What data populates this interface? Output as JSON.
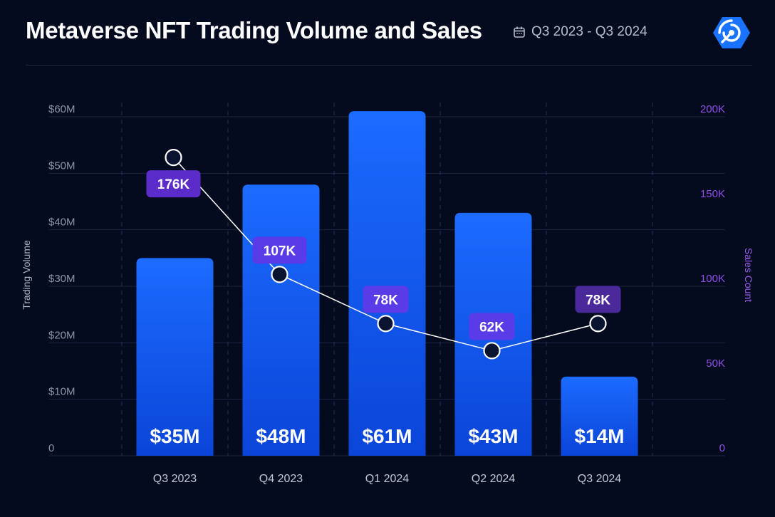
{
  "header": {
    "title": "Metaverse NFT Trading Volume and Sales",
    "date_range": "Q3 2023 - Q3 2024"
  },
  "colors": {
    "background": "#050b1f",
    "bar_top": "#1c6bff",
    "bar_bottom": "#0a45d8",
    "pill_purple": "#5b2cc9",
    "pill_indigo": "#5a3be8",
    "pill_violet": "#4a2a9a",
    "right_axis": "#8f4fe6",
    "logo": "#1a73ff"
  },
  "chart_data": {
    "type": "bar",
    "title": "Metaverse NFT Trading Volume and Sales",
    "categories": [
      "Q3 2023",
      "Q4 2023",
      "Q1 2024",
      "Q2 2024",
      "Q3 2024"
    ],
    "series": [
      {
        "name": "Trading Volume",
        "type": "bar",
        "axis": "left",
        "values": [
          35,
          48,
          61,
          43,
          14
        ],
        "labels": [
          "$35M",
          "$48M",
          "$61M",
          "$43M",
          "$14M"
        ]
      },
      {
        "name": "Sales Count",
        "type": "line",
        "axis": "right",
        "values": [
          176,
          107,
          78,
          62,
          78
        ],
        "labels": [
          "176K",
          "107K",
          "78K",
          "62K",
          "78K"
        ]
      }
    ],
    "ylabel": "Trading Volume",
    "y2label": "Sales Count",
    "ylim": [
      0,
      60
    ],
    "y2lim": [
      0,
      200
    ],
    "y_ticks": [
      0,
      10,
      20,
      30,
      40,
      50,
      60
    ],
    "y_tick_labels": [
      "0",
      "$10M",
      "$20M",
      "$30M",
      "$40M",
      "$50M",
      "$60M"
    ],
    "y2_ticks": [
      0,
      50,
      100,
      150,
      200
    ],
    "y2_tick_labels": [
      "0",
      "50K",
      "100K",
      "150K",
      "200K"
    ],
    "grid": true
  }
}
